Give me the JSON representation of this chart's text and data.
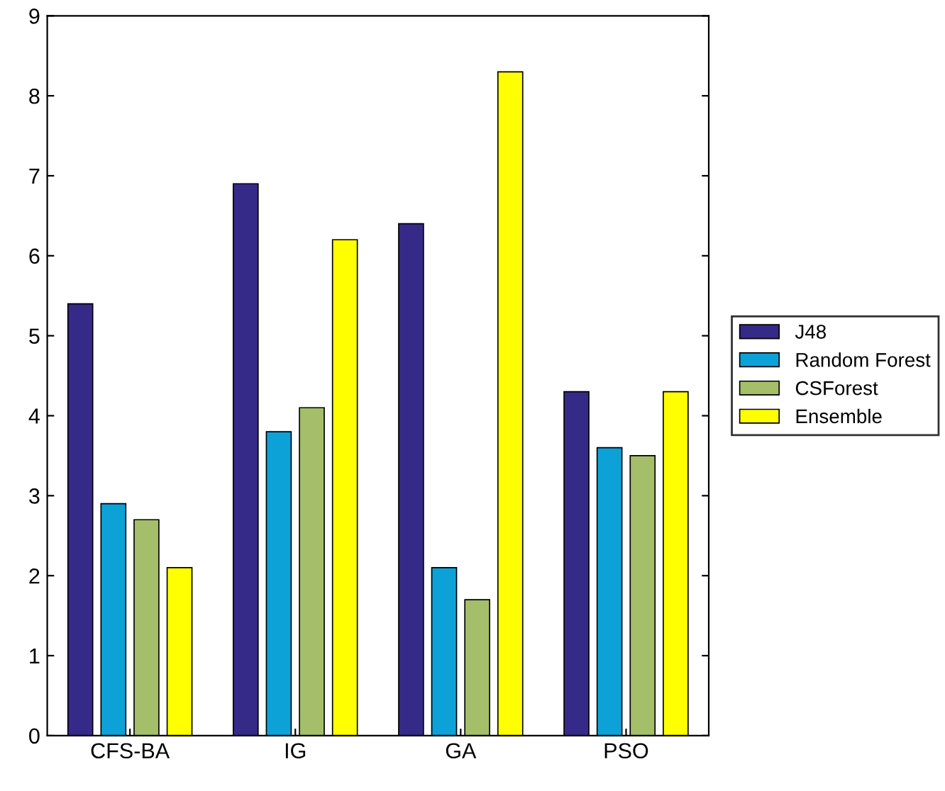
{
  "chart_data": {
    "type": "bar",
    "categories": [
      "CFS-BA",
      "IG",
      "GA",
      "PSO"
    ],
    "series": [
      {
        "name": "J48",
        "color": "#352a87",
        "values": [
          5.4,
          6.9,
          6.4,
          4.3
        ]
      },
      {
        "name": "Random Forest",
        "color": "#0ca2d8",
        "values": [
          2.9,
          3.8,
          2.1,
          3.6
        ]
      },
      {
        "name": "CSForest",
        "color": "#a4be6a",
        "values": [
          2.7,
          4.1,
          1.7,
          3.5
        ]
      },
      {
        "name": "Ensemble",
        "color": "#ffff00",
        "values": [
          2.1,
          6.2,
          8.3,
          4.3
        ]
      }
    ],
    "ylim": [
      0,
      9
    ],
    "yticks": [
      0,
      1,
      2,
      3,
      4,
      5,
      6,
      7,
      8,
      9
    ],
    "grid": false,
    "legend": "right"
  }
}
